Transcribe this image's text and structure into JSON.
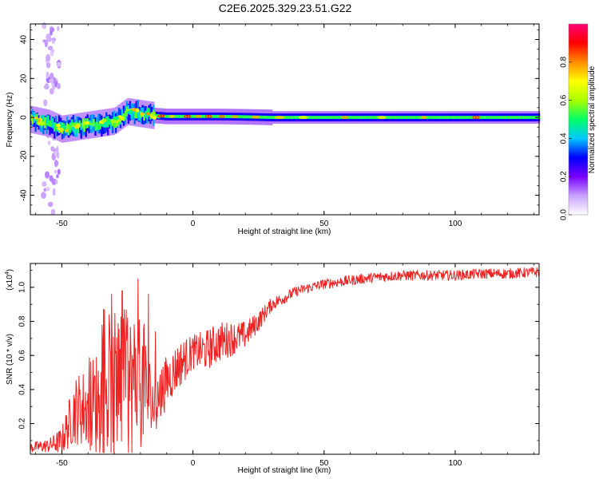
{
  "title": "C2E6.2025.329.23.51.G22",
  "chart_data": [
    {
      "type": "heatmap",
      "title": "C2E6.2025.329.23.51.G22",
      "xlabel": "Height of straight line (km)",
      "ylabel": "Frequency (Hz)",
      "xlim": [
        -62,
        132
      ],
      "ylim": [
        -50,
        48
      ],
      "x_ticks": [
        -50,
        0,
        50,
        100
      ],
      "x_tick_labels": [
        "-50",
        "0",
        "50",
        "100"
      ],
      "y_ticks": [
        -40,
        -20,
        0,
        20,
        40
      ],
      "y_tick_labels": [
        "-40",
        "-20",
        "0",
        "20",
        "40"
      ],
      "colorbar": {
        "label": "Normalized spectral amplitude",
        "range": [
          0,
          1
        ],
        "ticks": [
          0.0,
          0.2,
          0.4,
          0.6,
          0.8
        ],
        "tick_labels": [
          "0.0",
          "0.2",
          "0.4",
          "0.6",
          "0.8"
        ],
        "colors": [
          "#ffffff",
          "#c8a0ff",
          "#7800ff",
          "#0000ff",
          "#00c8ff",
          "#00ff64",
          "#aaff00",
          "#ffff00",
          "#ff8c00",
          "#ff0000",
          "#ff0078"
        ]
      },
      "ridge": {
        "description_values": "center frequency (Hz) vs height (km)",
        "x": [
          -62,
          -55,
          -50,
          -45,
          -40,
          -35,
          -30,
          -25,
          -20,
          -15,
          -10,
          -5,
          0,
          10,
          20,
          30,
          50,
          80,
          110,
          132
        ],
        "y": [
          -1,
          -3,
          -6,
          -5,
          -4,
          -3,
          -2,
          3,
          2,
          1,
          0.5,
          0.5,
          0.5,
          0.5,
          0.3,
          0,
          0,
          0,
          0,
          0
        ]
      }
    },
    {
      "type": "line",
      "xlabel": "Height of straight line (km)",
      "ylabel": "SNR (10 * v/v)",
      "y_multiplier": "(x10",
      "y_multiplier_exp": "4",
      "xlim": [
        -62,
        132
      ],
      "ylim": [
        0.02,
        1.14
      ],
      "x_ticks": [
        -50,
        0,
        50,
        100
      ],
      "x_tick_labels": [
        "-50",
        "0",
        "50",
        "100"
      ],
      "y_ticks": [
        0.2,
        0.4,
        0.6,
        0.8,
        1.0
      ],
      "y_tick_labels": [
        "0.2",
        "0.4",
        "0.6",
        "0.8",
        "1.0"
      ],
      "series": [
        {
          "name": "SNR",
          "color": "#ee2222",
          "envelope_x": [
            -62,
            -55,
            -50,
            -45,
            -40,
            -35,
            -30,
            -25,
            -20,
            -15,
            -10,
            -5,
            0,
            5,
            10,
            15,
            20,
            25,
            30,
            40,
            50,
            60,
            70,
            80,
            90,
            100,
            110,
            120,
            132
          ],
          "envelope_mean": [
            0.06,
            0.07,
            0.1,
            0.28,
            0.3,
            0.34,
            0.4,
            0.42,
            0.45,
            0.3,
            0.45,
            0.55,
            0.62,
            0.63,
            0.68,
            0.7,
            0.72,
            0.8,
            0.9,
            0.98,
            1.02,
            1.04,
            1.06,
            1.07,
            1.07,
            1.07,
            1.08,
            1.08,
            1.09
          ],
          "envelope_noise": [
            0.03,
            0.04,
            0.08,
            0.2,
            0.25,
            0.35,
            0.45,
            0.45,
            0.4,
            0.2,
            0.15,
            0.14,
            0.1,
            0.12,
            0.12,
            0.1,
            0.08,
            0.06,
            0.04,
            0.03,
            0.03,
            0.03,
            0.03,
            0.03,
            0.03,
            0.03,
            0.03,
            0.03,
            0.03
          ],
          "spike_x": [
            -31,
            -27,
            -21,
            -17
          ],
          "spike_y": [
            0.96,
            0.98,
            1.05,
            0.96
          ]
        }
      ]
    }
  ]
}
